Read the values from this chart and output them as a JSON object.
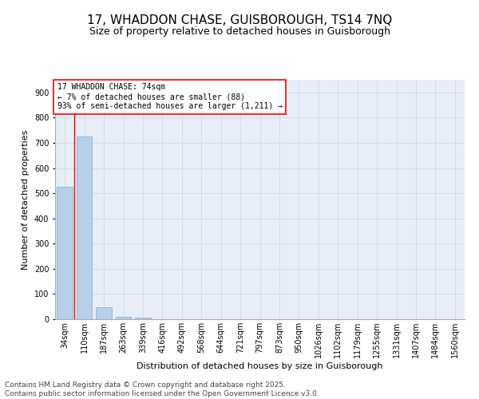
{
  "title1": "17, WHADDON CHASE, GUISBOROUGH, TS14 7NQ",
  "title2": "Size of property relative to detached houses in Guisborough",
  "xlabel": "Distribution of detached houses by size in Guisborough",
  "ylabel": "Number of detached properties",
  "categories": [
    "34sqm",
    "110sqm",
    "187sqm",
    "263sqm",
    "339sqm",
    "416sqm",
    "492sqm",
    "568sqm",
    "644sqm",
    "721sqm",
    "797sqm",
    "873sqm",
    "950sqm",
    "1026sqm",
    "1102sqm",
    "1179sqm",
    "1255sqm",
    "1331sqm",
    "1407sqm",
    "1484sqm",
    "1560sqm"
  ],
  "values": [
    527,
    725,
    47,
    10,
    5,
    0,
    0,
    0,
    0,
    0,
    0,
    0,
    0,
    0,
    0,
    0,
    0,
    0,
    0,
    0,
    0
  ],
  "bar_color": "#b8cfe8",
  "bar_edge_color": "#7aaad4",
  "vline_color": "#ff0000",
  "grid_color": "#d0d8e8",
  "bg_color": "#e8eef8",
  "ylim": [
    0,
    950
  ],
  "yticks": [
    0,
    100,
    200,
    300,
    400,
    500,
    600,
    700,
    800,
    900
  ],
  "annotation_text": "17 WHADDON CHASE: 74sqm\n← 7% of detached houses are smaller (88)\n93% of semi-detached houses are larger (1,211) →",
  "footnote": "Contains HM Land Registry data © Crown copyright and database right 2025.\nContains public sector information licensed under the Open Government Licence v3.0.",
  "title_fontsize": 11,
  "subtitle_fontsize": 9,
  "axis_label_fontsize": 8,
  "tick_fontsize": 7,
  "annotation_fontsize": 7,
  "footnote_fontsize": 6.5
}
